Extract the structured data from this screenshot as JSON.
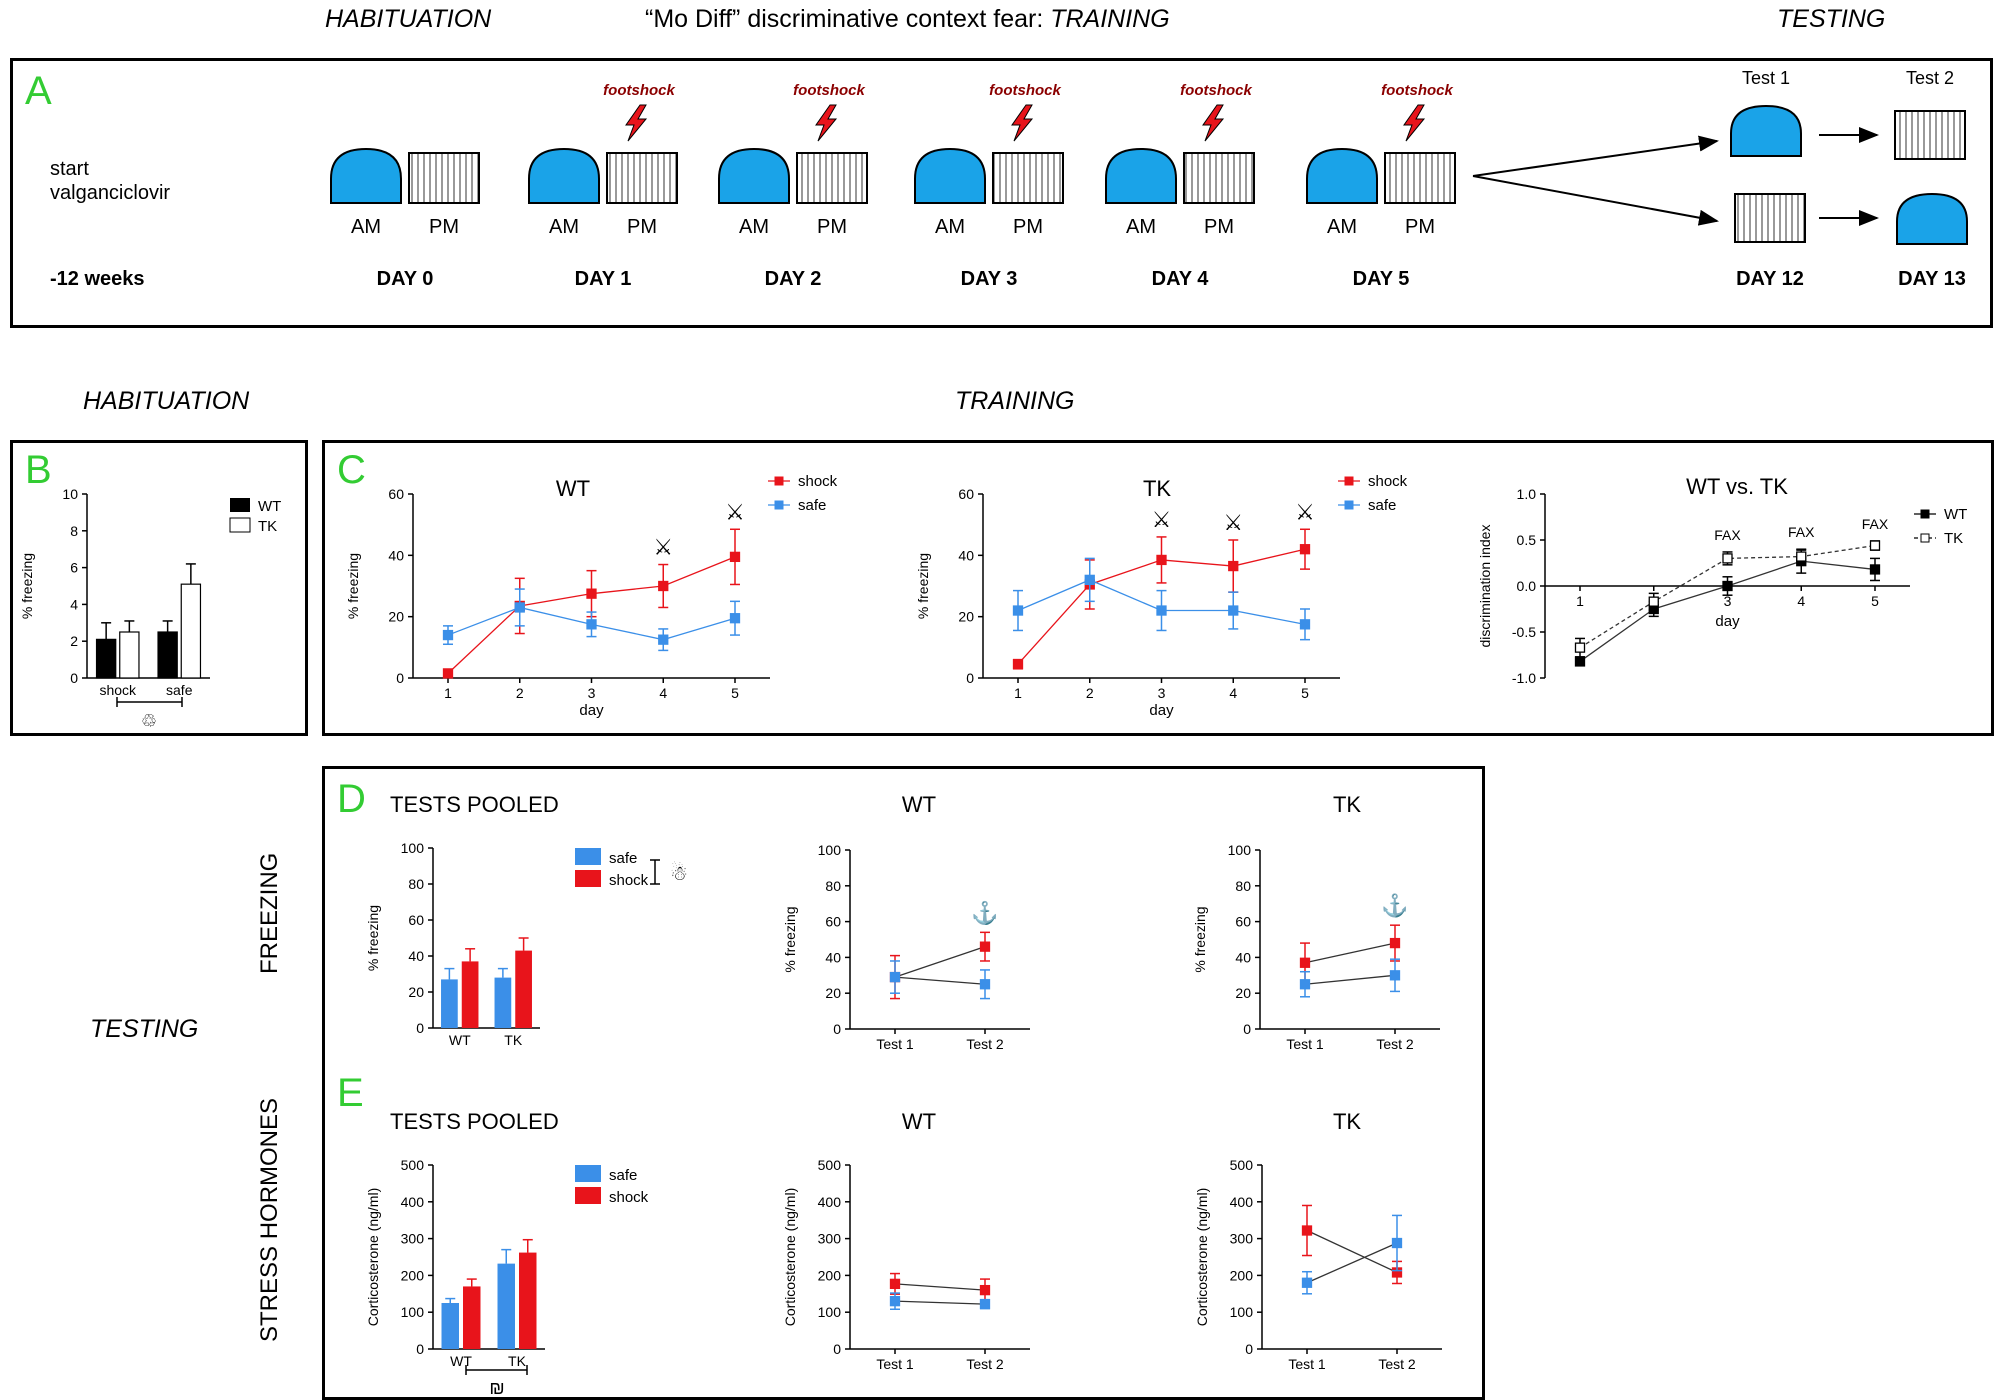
{
  "headers": {
    "habituation_top": "HABITUATION",
    "training_top": "“Mo Diff” discriminative context fear: ",
    "training_top_italic": "TRAINING",
    "testing_top": "TESTING",
    "habituation_mid": "HABITUATION",
    "training_mid": "TRAINING",
    "testing_left": "TESTING"
  },
  "panel_a": {
    "letter": "A",
    "start": "start",
    "drug": "valganciclovir",
    "weeks": "-12 weeks",
    "footshock": "footshock",
    "am": "AM",
    "pm": "PM",
    "days": [
      "DAY 0",
      "DAY 1",
      "DAY 2",
      "DAY 3",
      "DAY 4",
      "DAY 5"
    ],
    "test1": "Test 1",
    "test2": "Test 2",
    "day12": "DAY 12",
    "day13": "DAY 13"
  },
  "side_labels": {
    "freezing": "FREEZING",
    "stress": "STRESS HORMONES"
  },
  "letters": {
    "b": "B",
    "c": "C",
    "d": "D",
    "e": "E"
  },
  "colors": {
    "shock": "#e8141b",
    "safe": "#3b8fe8",
    "green": "#33cc33",
    "context_a": "#1aa3e8"
  },
  "chart_data": [
    {
      "id": "B",
      "type": "bar",
      "title": "",
      "ylabel": "% freezing",
      "ylim": [
        0,
        10
      ],
      "yticks": [
        0,
        2,
        4,
        6,
        8,
        10
      ],
      "categories": [
        "shock",
        "safe"
      ],
      "series": [
        {
          "name": "WT",
          "values": [
            2.1,
            2.5
          ],
          "err": [
            0.9,
            0.6
          ]
        },
        {
          "name": "TK",
          "values": [
            2.5,
            5.1
          ],
          "err": [
            0.6,
            1.1
          ]
        }
      ],
      "annotation": "♲"
    },
    {
      "id": "C1",
      "type": "line",
      "title": "WT",
      "xlabel": "day",
      "ylabel": "% freezing",
      "ylim": [
        0,
        60
      ],
      "yticks": [
        0,
        20,
        40,
        60
      ],
      "x": [
        1,
        2,
        3,
        4,
        5
      ],
      "series": [
        {
          "name": "shock",
          "values": [
            1.5,
            23.5,
            27.5,
            30,
            39.5
          ],
          "err": [
            0,
            9,
            7.5,
            7,
            9
          ]
        },
        {
          "name": "safe",
          "values": [
            14,
            23,
            17.5,
            12.5,
            19.5
          ],
          "err": [
            3,
            6,
            4,
            3.5,
            5.5
          ]
        }
      ],
      "markers": {
        "4": "⚔",
        "5": "⚔"
      }
    },
    {
      "id": "C2",
      "type": "line",
      "title": "TK",
      "xlabel": "day",
      "ylabel": "% freezing",
      "ylim": [
        0,
        60
      ],
      "yticks": [
        0,
        20,
        40,
        60
      ],
      "x": [
        1,
        2,
        3,
        4,
        5
      ],
      "series": [
        {
          "name": "shock",
          "values": [
            4.5,
            30.5,
            38.5,
            36.5,
            42
          ],
          "err": [
            1.5,
            8,
            7.5,
            8.5,
            6.5
          ]
        },
        {
          "name": "safe",
          "values": [
            22,
            32,
            22,
            22,
            17.5
          ],
          "err": [
            6.5,
            7,
            6.5,
            6,
            5
          ]
        }
      ],
      "markers": {
        "3": "⚔",
        "4": "⚔",
        "5": "⚔"
      }
    },
    {
      "id": "C3",
      "type": "line",
      "title": "WT vs. TK",
      "xlabel": "day",
      "ylabel": "discrimination index",
      "ylim": [
        -1,
        1
      ],
      "yticks": [
        -1.0,
        -0.5,
        0.0,
        0.5,
        1.0
      ],
      "x": [
        1,
        2,
        3,
        4,
        5
      ],
      "series": [
        {
          "name": "WT",
          "values": [
            -0.82,
            -0.25,
            0.0,
            0.27,
            0.18
          ],
          "err": [
            0.03,
            0.08,
            0.1,
            0.13,
            0.12
          ]
        },
        {
          "name": "TK",
          "values": [
            -0.67,
            -0.17,
            0.3,
            0.32,
            0.44
          ],
          "err": [
            0.1,
            0.09,
            0.07,
            0.07,
            0.05
          ]
        }
      ],
      "markers": {
        "3": "FAX",
        "4": "FAX",
        "5": "FAX"
      }
    },
    {
      "id": "D1",
      "type": "bar",
      "title": "TESTS POOLED",
      "ylabel": "% freezing",
      "ylim": [
        0,
        100
      ],
      "yticks": [
        0,
        20,
        40,
        60,
        80,
        100
      ],
      "categories": [
        "WT",
        "TK"
      ],
      "series": [
        {
          "name": "safe",
          "values": [
            27,
            28
          ],
          "err": [
            6,
            5
          ]
        },
        {
          "name": "shock",
          "values": [
            37,
            43
          ],
          "err": [
            7,
            7
          ]
        }
      ],
      "annotation": "☃"
    },
    {
      "id": "D2",
      "type": "line",
      "title": "WT",
      "ylabel": "% freezing",
      "ylim": [
        0,
        100
      ],
      "yticks": [
        0,
        20,
        40,
        60,
        80,
        100
      ],
      "categories": [
        "Test 1",
        "Test 2"
      ],
      "series": [
        {
          "name": "shock",
          "values": [
            29,
            46
          ],
          "err": [
            12,
            8
          ]
        },
        {
          "name": "safe",
          "values": [
            29,
            25
          ],
          "err": [
            9,
            8
          ]
        }
      ],
      "markers": {
        "2": "⚓"
      }
    },
    {
      "id": "D3",
      "type": "line",
      "title": "TK",
      "ylabel": "% freezing",
      "ylim": [
        0,
        100
      ],
      "yticks": [
        0,
        20,
        40,
        60,
        80,
        100
      ],
      "categories": [
        "Test 1",
        "Test 2"
      ],
      "series": [
        {
          "name": "shock",
          "values": [
            37,
            48
          ],
          "err": [
            11,
            10
          ]
        },
        {
          "name": "safe",
          "values": [
            25,
            30
          ],
          "err": [
            7,
            9
          ]
        }
      ],
      "markers": {
        "2": "⚓"
      }
    },
    {
      "id": "E1",
      "type": "bar",
      "title": "TESTS POOLED",
      "ylabel": "Corticosterone (ng/ml)",
      "ylim": [
        0,
        500
      ],
      "yticks": [
        0,
        100,
        200,
        300,
        400,
        500
      ],
      "categories": [
        "WT",
        "TK"
      ],
      "series": [
        {
          "name": "safe",
          "values": [
            125,
            232
          ],
          "err": [
            12,
            38
          ]
        },
        {
          "name": "shock",
          "values": [
            170,
            262
          ],
          "err": [
            20,
            35
          ]
        }
      ],
      "annotation": "₪"
    },
    {
      "id": "E2",
      "type": "line",
      "title": "WT",
      "ylabel": "Corticosterone (ng/ml)",
      "ylim": [
        0,
        500
      ],
      "yticks": [
        0,
        100,
        200,
        300,
        400,
        500
      ],
      "categories": [
        "Test 1",
        "Test 2"
      ],
      "series": [
        {
          "name": "shock",
          "values": [
            177,
            160
          ],
          "err": [
            28,
            30
          ]
        },
        {
          "name": "safe",
          "values": [
            130,
            122
          ],
          "err": [
            22,
            12
          ]
        }
      ]
    },
    {
      "id": "E3",
      "type": "line",
      "title": "TK",
      "ylabel": "Corticosterone (ng/ml)",
      "ylim": [
        0,
        500
      ],
      "yticks": [
        0,
        100,
        200,
        300,
        400,
        500
      ],
      "categories": [
        "Test 1",
        "Test 2"
      ],
      "series": [
        {
          "name": "shock",
          "values": [
            322,
            208
          ],
          "err": [
            68,
            30
          ]
        },
        {
          "name": "safe",
          "values": [
            180,
            288
          ],
          "err": [
            30,
            75
          ]
        }
      ]
    }
  ]
}
